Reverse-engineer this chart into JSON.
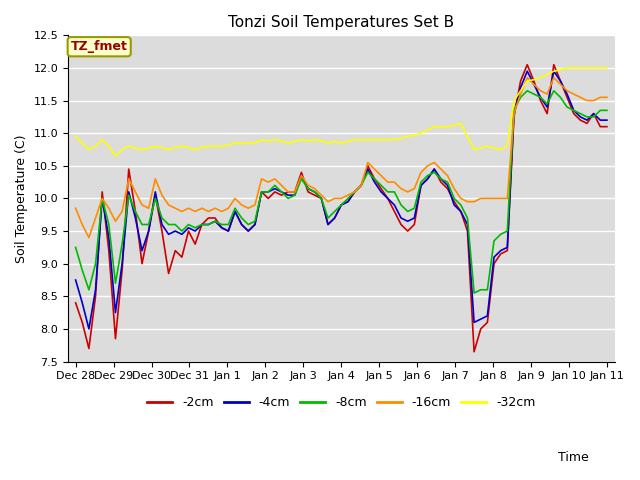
{
  "title": "Tonzi Soil Temperatures Set B",
  "xlabel": "Time",
  "ylabel": "Soil Temperature (C)",
  "ylim": [
    7.5,
    12.5
  ],
  "annotation": "TZ_fmet",
  "x_labels": [
    "Dec 28",
    "Dec 29",
    "Dec 30",
    "Dec 31",
    "Jan 1",
    "Jan 2",
    "Jan 3",
    "Jan 4",
    "Jan 5",
    "Jan 6",
    "Jan 7",
    "Jan 8",
    "Jan 9",
    "Jan 10",
    "Jan 11"
  ],
  "background_color": "#dcdcdc",
  "series_order": [
    "-2cm",
    "-4cm",
    "-8cm",
    "-16cm",
    "-32cm"
  ],
  "series": {
    "-2cm": {
      "color": "#cc0000",
      "data": [
        8.4,
        8.1,
        7.7,
        8.5,
        10.1,
        9.2,
        7.85,
        8.9,
        10.45,
        9.8,
        9.0,
        9.5,
        10.05,
        9.5,
        8.85,
        9.2,
        9.1,
        9.5,
        9.3,
        9.6,
        9.7,
        9.7,
        9.55,
        9.5,
        9.8,
        9.6,
        9.5,
        9.6,
        10.1,
        10.0,
        10.1,
        10.05,
        10.1,
        10.1,
        10.4,
        10.1,
        10.05,
        10.0,
        9.6,
        9.7,
        9.9,
        9.95,
        10.1,
        10.2,
        10.5,
        10.3,
        10.15,
        10.0,
        9.8,
        9.6,
        9.5,
        9.6,
        10.2,
        10.3,
        10.45,
        10.25,
        10.15,
        9.95,
        9.8,
        9.5,
        7.65,
        8.0,
        8.1,
        9.0,
        9.15,
        9.2,
        11.25,
        11.8,
        12.05,
        11.8,
        11.5,
        11.3,
        12.05,
        11.8,
        11.55,
        11.3,
        11.2,
        11.15,
        11.3,
        11.1,
        11.1
      ]
    },
    "-4cm": {
      "color": "#0000cc",
      "data": [
        8.75,
        8.4,
        8.0,
        8.6,
        10.0,
        9.4,
        8.25,
        9.0,
        10.1,
        9.7,
        9.2,
        9.5,
        10.1,
        9.6,
        9.45,
        9.5,
        9.45,
        9.55,
        9.5,
        9.6,
        9.6,
        9.65,
        9.55,
        9.5,
        9.8,
        9.6,
        9.5,
        9.6,
        10.1,
        10.1,
        10.15,
        10.1,
        10.05,
        10.05,
        10.35,
        10.15,
        10.1,
        10.0,
        9.6,
        9.7,
        9.9,
        9.95,
        10.1,
        10.2,
        10.45,
        10.25,
        10.1,
        10.0,
        9.9,
        9.7,
        9.65,
        9.7,
        10.2,
        10.3,
        10.45,
        10.3,
        10.2,
        9.9,
        9.8,
        9.6,
        8.1,
        8.15,
        8.2,
        9.1,
        9.2,
        9.25,
        11.3,
        11.7,
        11.95,
        11.75,
        11.55,
        11.4,
        11.95,
        11.8,
        11.6,
        11.35,
        11.25,
        11.2,
        11.3,
        11.2,
        11.2
      ]
    },
    "-8cm": {
      "color": "#00bb00",
      "data": [
        9.25,
        8.9,
        8.6,
        9.0,
        10.0,
        9.6,
        8.7,
        9.3,
        10.05,
        9.8,
        9.6,
        9.6,
        10.0,
        9.7,
        9.6,
        9.6,
        9.5,
        9.6,
        9.55,
        9.6,
        9.6,
        9.65,
        9.6,
        9.6,
        9.85,
        9.7,
        9.6,
        9.65,
        10.1,
        10.1,
        10.2,
        10.1,
        10.0,
        10.05,
        10.3,
        10.15,
        10.1,
        10.0,
        9.7,
        9.8,
        9.9,
        10.0,
        10.1,
        10.2,
        10.4,
        10.3,
        10.2,
        10.1,
        10.1,
        9.9,
        9.8,
        9.85,
        10.25,
        10.35,
        10.4,
        10.3,
        10.25,
        10.0,
        9.9,
        9.7,
        8.55,
        8.6,
        8.6,
        9.35,
        9.45,
        9.5,
        11.35,
        11.55,
        11.65,
        11.6,
        11.55,
        11.45,
        11.65,
        11.55,
        11.4,
        11.35,
        11.3,
        11.25,
        11.25,
        11.35,
        11.35
      ]
    },
    "-16cm": {
      "color": "#ff8c00",
      "data": [
        9.85,
        9.6,
        9.4,
        9.7,
        10.0,
        9.85,
        9.65,
        9.8,
        10.3,
        10.1,
        9.9,
        9.85,
        10.3,
        10.05,
        9.9,
        9.85,
        9.8,
        9.85,
        9.8,
        9.85,
        9.8,
        9.85,
        9.8,
        9.85,
        10.0,
        9.9,
        9.85,
        9.9,
        10.3,
        10.25,
        10.3,
        10.2,
        10.1,
        10.1,
        10.35,
        10.2,
        10.15,
        10.05,
        9.95,
        10.0,
        10.0,
        10.05,
        10.1,
        10.2,
        10.55,
        10.45,
        10.35,
        10.25,
        10.25,
        10.15,
        10.1,
        10.15,
        10.4,
        10.5,
        10.55,
        10.45,
        10.35,
        10.15,
        10.0,
        9.95,
        9.95,
        10.0,
        10.0,
        10.0,
        10.0,
        10.0,
        11.3,
        11.6,
        11.85,
        11.75,
        11.65,
        11.6,
        11.85,
        11.75,
        11.65,
        11.6,
        11.55,
        11.5,
        11.5,
        11.55,
        11.55
      ]
    },
    "-32cm": {
      "color": "#ffff00",
      "data": [
        10.95,
        10.85,
        10.75,
        10.8,
        10.9,
        10.8,
        10.65,
        10.75,
        10.8,
        10.77,
        10.75,
        10.77,
        10.8,
        10.78,
        10.75,
        10.78,
        10.8,
        10.78,
        10.75,
        10.78,
        10.8,
        10.8,
        10.8,
        10.82,
        10.85,
        10.84,
        10.85,
        10.85,
        10.9,
        10.88,
        10.9,
        10.88,
        10.85,
        10.87,
        10.9,
        10.88,
        10.9,
        10.88,
        10.85,
        10.87,
        10.85,
        10.87,
        10.9,
        10.9,
        10.9,
        10.9,
        10.9,
        10.9,
        10.9,
        10.92,
        10.95,
        10.97,
        11.0,
        11.05,
        11.1,
        11.1,
        11.1,
        11.12,
        11.15,
        10.95,
        10.75,
        10.77,
        10.8,
        10.77,
        10.75,
        10.8,
        11.5,
        11.65,
        11.8,
        11.82,
        11.85,
        11.9,
        11.95,
        11.97,
        12.0,
        12.0,
        12.0,
        12.0,
        12.0,
        12.0,
        12.0
      ]
    }
  },
  "n_points": 81,
  "legend_entries": [
    "-2cm",
    "-4cm",
    "-8cm",
    "-16cm",
    "-32cm"
  ],
  "legend_colors": [
    "#cc0000",
    "#0000cc",
    "#00bb00",
    "#ff8c00",
    "#ffff00"
  ]
}
